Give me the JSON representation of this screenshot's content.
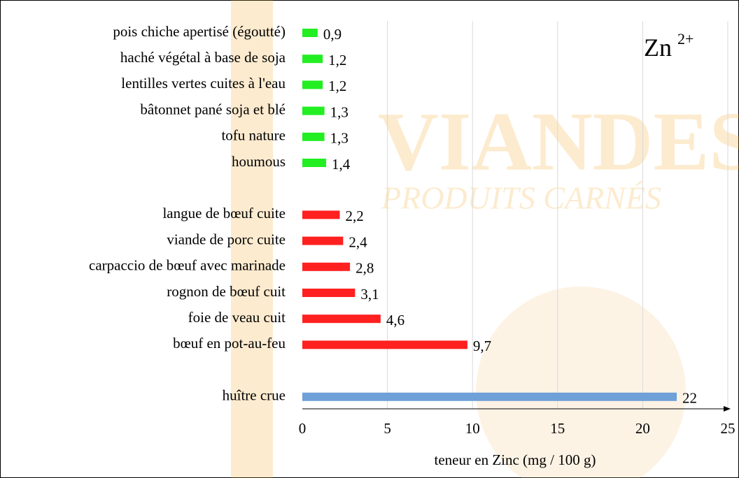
{
  "chart_data": {
    "type": "barh",
    "annotation": {
      "text": "Zn",
      "superscript": "2+"
    },
    "watermark": [
      "VIANDES",
      "PRODUITS CARNÉS"
    ],
    "x_label": "teneur en Zinc (mg / 100 g)",
    "categories": [
      "pois chiche apertisé (égoutté)",
      "haché végétal à base de soja",
      "lentilles vertes cuites à l'eau",
      "bâtonnet pané soja et blé",
      "tofu nature",
      "houmous",
      null,
      "langue de bœuf cuite",
      "viande de porc cuite",
      "carpaccio de bœuf avec marinade",
      "rognon de bœuf cuit",
      "foie de veau cuit",
      "bœuf en pot-au-feu",
      null,
      "huître crue"
    ],
    "values": [
      0.9,
      1.2,
      1.2,
      1.3,
      1.3,
      1.4,
      null,
      2.2,
      2.4,
      2.8,
      3.1,
      4.6,
      9.7,
      null,
      22
    ],
    "value_labels": [
      "0,9",
      "1,2",
      "1,2",
      "1,3",
      "1,3",
      "1,4",
      null,
      "2,2",
      "2,4",
      "2,8",
      "3,1",
      "4,6",
      "9,7",
      null,
      "22"
    ],
    "colors": [
      "#22ee22",
      "#22ee22",
      "#22ee22",
      "#22ee22",
      "#22ee22",
      "#22ee22",
      null,
      "#ff2020",
      "#ff2020",
      "#ff2020",
      "#ff2020",
      "#ff2020",
      "#ff2020",
      null,
      "#6fa0d8"
    ],
    "xlim": [
      0,
      25
    ],
    "xticks": [
      0,
      5,
      10,
      15,
      20,
      25
    ],
    "grid": true
  }
}
